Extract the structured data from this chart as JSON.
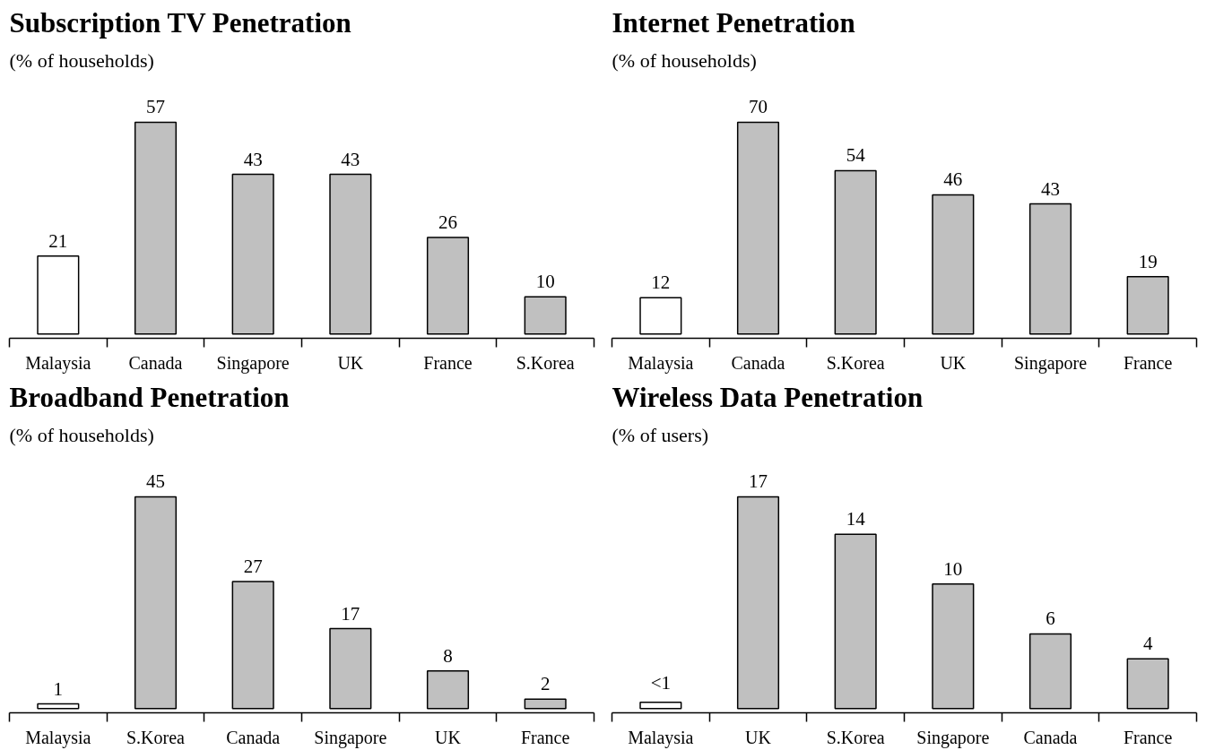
{
  "chart_data": [
    {
      "type": "bar",
      "title": "Subscription TV Penetration",
      "subtitle": "(% of households)",
      "categories": [
        "Malaysia",
        "Canada",
        "Singapore",
        "UK",
        "France",
        "S.Korea"
      ],
      "values": [
        21,
        57,
        43,
        43,
        26,
        10
      ],
      "colors": [
        "#ffffff",
        "#c0c0c0",
        "#c0c0c0",
        "#c0c0c0",
        "#c0c0c0",
        "#c0c0c0"
      ],
      "data_labels": true,
      "tick_labels": "x"
    },
    {
      "type": "bar",
      "title": "Internet Penetration",
      "subtitle": "(% of households)",
      "categories": [
        "Malaysia",
        "Canada",
        "S.Korea",
        "UK",
        "Singapore",
        "France"
      ],
      "values": [
        12,
        70,
        54,
        46,
        43,
        19
      ],
      "colors": [
        "#ffffff",
        "#c0c0c0",
        "#c0c0c0",
        "#c0c0c0",
        "#c0c0c0",
        "#c0c0c0"
      ],
      "data_labels": true,
      "tick_labels": "x"
    },
    {
      "type": "bar",
      "title": "Broadband Penetration",
      "subtitle": "(% of households)",
      "categories": [
        "Malaysia",
        "S.Korea",
        "Canada",
        "Singapore",
        "UK",
        "France"
      ],
      "values": [
        1,
        45,
        27,
        17,
        8,
        2
      ],
      "colors": [
        "#ffffff",
        "#c0c0c0",
        "#c0c0c0",
        "#c0c0c0",
        "#c0c0c0",
        "#c0c0c0"
      ],
      "data_labels": true,
      "tick_labels": "x"
    },
    {
      "type": "bar",
      "title": "Wireless Data Penetration",
      "subtitle": "(% of users)",
      "categories": [
        "Malaysia",
        "UK",
        "S.Korea",
        "Singapore",
        "Canada",
        "France"
      ],
      "values": [
        0.5,
        17,
        14,
        10,
        6,
        4
      ],
      "value_labels": [
        "<1",
        "17",
        "14",
        "10",
        "6",
        "4"
      ],
      "colors": [
        "#ffffff",
        "#c0c0c0",
        "#c0c0c0",
        "#c0c0c0",
        "#c0c0c0",
        "#c0c0c0"
      ],
      "tick_labels": "x"
    }
  ]
}
